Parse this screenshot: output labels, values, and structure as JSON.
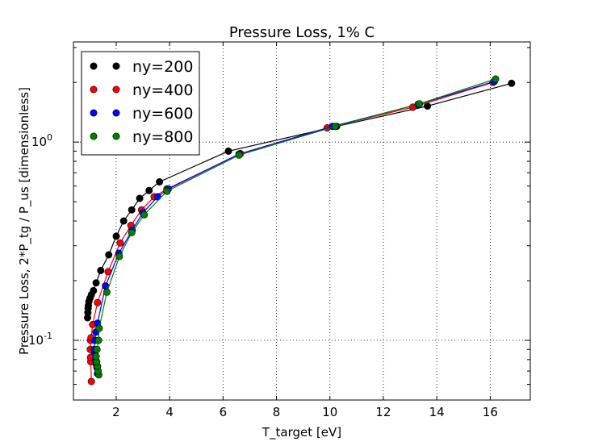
{
  "chart_data": {
    "type": "line",
    "title": "Pressure Loss, 1% C",
    "xlabel": "T_target [eV]",
    "ylabel": "Pressure Loss, 2*P_tg / P_us [dimensionless]",
    "xlim": [
      0.4,
      17.5
    ],
    "ylim": [
      0.05,
      3.2
    ],
    "yscale": "log",
    "grid": true,
    "legend_position": "upper-left",
    "x_ticks": [
      2,
      4,
      6,
      8,
      10,
      12,
      14,
      16
    ],
    "x_tick_labels": [
      "2",
      "4",
      "6",
      "8",
      "10",
      "12",
      "14",
      "16"
    ],
    "y_ticks": [
      0.1,
      1.0
    ],
    "y_tick_labels": [
      "10^-1",
      "10^0"
    ],
    "series": [
      {
        "name": "ny=200",
        "color": "#000000",
        "x": [
          0.93,
          0.94,
          0.95,
          0.96,
          0.98,
          1.02,
          1.07,
          1.15,
          1.25,
          1.42,
          1.72,
          2.0,
          2.28,
          2.58,
          2.88,
          3.23,
          3.62,
          6.2,
          10.25,
          13.65,
          16.8
        ],
        "y": [
          0.13,
          0.138,
          0.145,
          0.15,
          0.157,
          0.163,
          0.17,
          0.178,
          0.195,
          0.225,
          0.27,
          0.335,
          0.4,
          0.455,
          0.52,
          0.57,
          0.63,
          0.9,
          1.2,
          1.52,
          1.98
        ]
      },
      {
        "name": "ny=400",
        "color": "#ff0000",
        "x": [
          1.07,
          1.05,
          1.04,
          1.03,
          1.04,
          1.06,
          1.12,
          1.3,
          1.7,
          2.15,
          2.55,
          2.95,
          3.42,
          3.9,
          6.65,
          9.9,
          13.1,
          16.1
        ],
        "y": [
          0.062,
          0.078,
          0.082,
          0.09,
          0.1,
          0.103,
          0.12,
          0.155,
          0.222,
          0.31,
          0.38,
          0.455,
          0.53,
          0.58,
          0.875,
          1.18,
          1.5,
          2.0
        ]
      },
      {
        "name": "ny=600",
        "color": "#0000ff",
        "x": [
          1.3,
          1.28,
          1.25,
          1.22,
          1.2,
          1.18,
          1.2,
          1.24,
          1.3,
          1.6,
          2.1,
          2.6,
          3.0,
          3.55,
          3.95,
          6.6,
          10.1,
          13.3,
          16.15
        ],
        "y": [
          0.068,
          0.073,
          0.076,
          0.08,
          0.086,
          0.09,
          0.1,
          0.11,
          0.122,
          0.188,
          0.275,
          0.36,
          0.44,
          0.53,
          0.58,
          0.87,
          1.2,
          1.55,
          2.02
        ]
      },
      {
        "name": "ny=800",
        "color": "#008000",
        "x": [
          1.35,
          1.32,
          1.3,
          1.27,
          1.25,
          1.28,
          1.34,
          1.36,
          1.65,
          2.12,
          2.58,
          3.05,
          3.9,
          6.6,
          10.2,
          13.35,
          16.2
        ],
        "y": [
          0.067,
          0.07,
          0.074,
          0.078,
          0.083,
          0.09,
          0.1,
          0.115,
          0.175,
          0.265,
          0.35,
          0.43,
          0.565,
          0.86,
          1.2,
          1.56,
          2.08
        ]
      }
    ]
  }
}
